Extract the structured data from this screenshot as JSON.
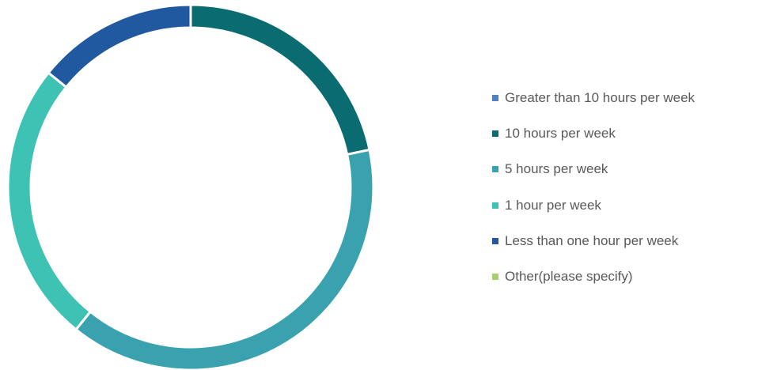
{
  "chart_data": {
    "type": "pie",
    "variant": "donut",
    "title": "",
    "legend_position": "right",
    "series": [
      {
        "name": "Greater than 10 hours per week",
        "value": 0,
        "color": "#4E81BD"
      },
      {
        "name": "10 hours per week",
        "value": 21.7,
        "color": "#0A6B70"
      },
      {
        "name": "5 hours per week",
        "value": 39.1,
        "color": "#3AA1AE"
      },
      {
        "name": "1 hour per week",
        "value": 25.0,
        "color": "#3EC2B3"
      },
      {
        "name": "Less than one hour per week",
        "value": 14.2,
        "color": "#2159A0"
      },
      {
        "name": "Other(please specify)",
        "value": 0,
        "color": "#A7CF6E"
      }
    ]
  }
}
